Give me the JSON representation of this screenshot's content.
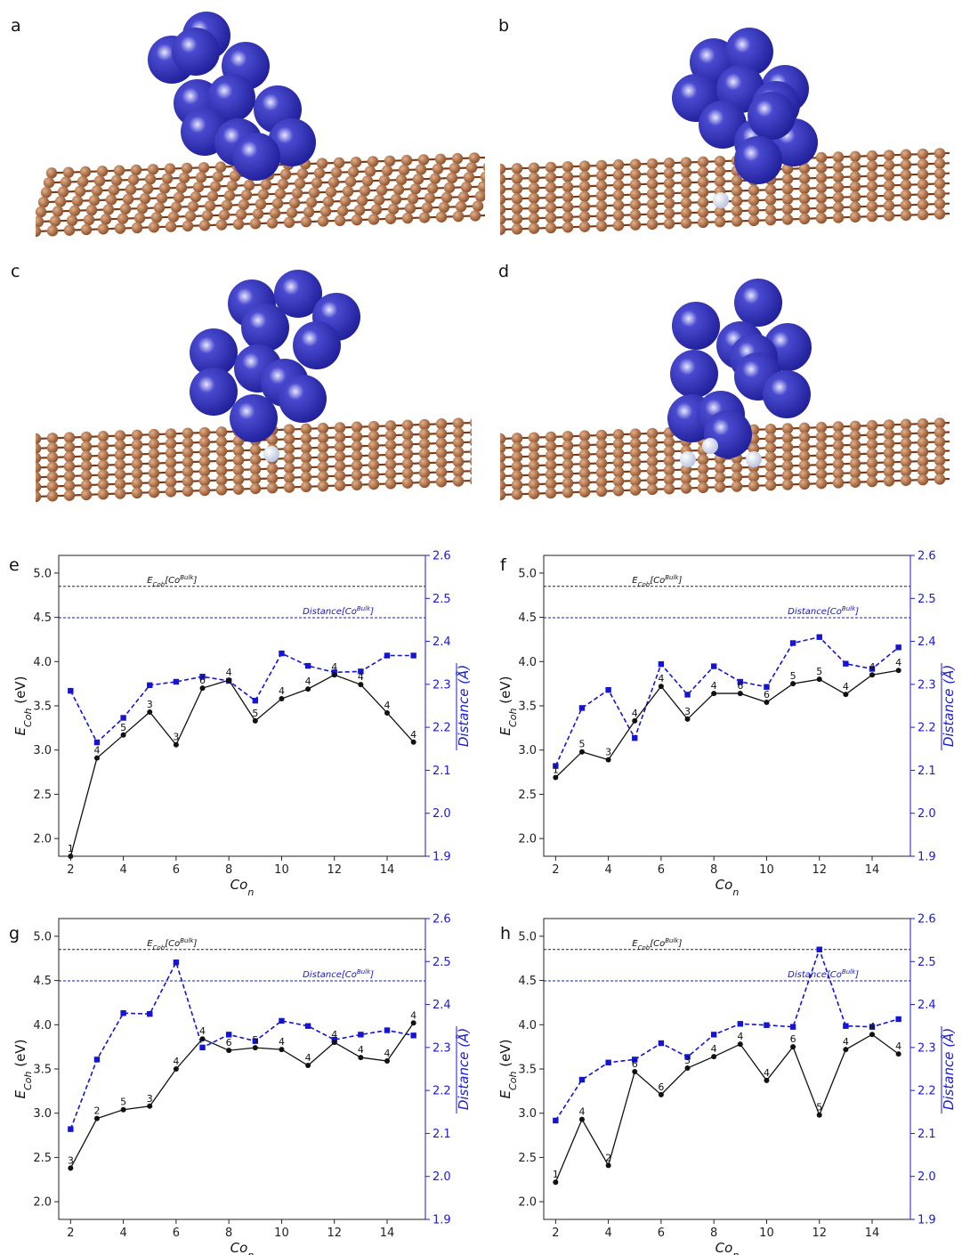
{
  "panels": {
    "a": "a",
    "b": "b",
    "c": "c",
    "d": "d",
    "e": "e",
    "f": "f",
    "g": "g",
    "h": "h"
  },
  "colors": {
    "cobalt": "#1f1f99",
    "carbon": "#8b4a24",
    "nitrogen": "#b7c2df",
    "energy_line": "#111111",
    "distance_line": "#1414d2",
    "axis_blue": "#1a1adb"
  },
  "axes_text": {
    "xlabel_main": "Co",
    "xlabel_sub": "n",
    "ylabel_left_main": "E",
    "ylabel_left_sub": "Coh",
    "ylabel_left_unit": " (eV)",
    "ylabel_right": "Distance (Å)",
    "ref_energy_main": "E",
    "ref_energy_sub": "Coh",
    "ref_energy_bracket_open": "[Co",
    "ref_energy_sup": "Bulk",
    "ref_energy_bracket_close": "]",
    "ref_dist_main": "Distance[Co",
    "ref_dist_sup": "Bulk",
    "ref_dist_close": "]"
  },
  "chart_data": [
    {
      "panel": "e",
      "type": "line",
      "x": [
        2,
        3,
        4,
        5,
        6,
        7,
        8,
        9,
        10,
        11,
        12,
        13,
        14,
        15
      ],
      "xticks": [
        2,
        4,
        6,
        8,
        10,
        12,
        14
      ],
      "xlim": [
        1.55,
        15.45
      ],
      "ylim_left": [
        1.8,
        5.2
      ],
      "yticks_left": [
        2.0,
        2.5,
        3.0,
        3.5,
        4.0,
        4.5,
        5.0
      ],
      "ylim_right": [
        1.9,
        2.6
      ],
      "yticks_right": [
        1.9,
        2.0,
        2.1,
        2.2,
        2.3,
        2.4,
        2.5,
        2.6
      ],
      "energy": [
        1.8,
        2.91,
        3.17,
        3.43,
        3.06,
        3.7,
        3.79,
        3.33,
        3.58,
        3.69,
        3.85,
        3.74,
        3.42,
        3.09
      ],
      "energy_labels": [
        "1",
        "4",
        "5",
        "3",
        "3",
        "6",
        "4",
        "5",
        "4",
        "4",
        "4",
        "4",
        "4",
        "4"
      ],
      "distance": [
        2.285,
        2.165,
        2.222,
        2.298,
        2.306,
        2.318,
        2.308,
        2.262,
        2.372,
        2.343,
        2.328,
        2.33,
        2.367,
        2.367
      ],
      "ref_energy": 4.85,
      "ref_distance": 2.455
    },
    {
      "panel": "f",
      "type": "line",
      "x": [
        2,
        3,
        4,
        5,
        6,
        7,
        8,
        9,
        10,
        11,
        12,
        13,
        14,
        15
      ],
      "xticks": [
        2,
        4,
        6,
        8,
        10,
        12,
        14
      ],
      "xlim": [
        1.55,
        15.45
      ],
      "ylim_left": [
        1.8,
        5.2
      ],
      "yticks_left": [
        2.0,
        2.5,
        3.0,
        3.5,
        4.0,
        4.5,
        5.0
      ],
      "ylim_right": [
        1.9,
        2.6
      ],
      "yticks_right": [
        1.9,
        2.0,
        2.1,
        2.2,
        2.3,
        2.4,
        2.5,
        2.6
      ],
      "energy": [
        2.69,
        2.98,
        2.89,
        3.33,
        3.72,
        3.35,
        3.64,
        3.64,
        3.54,
        3.75,
        3.8,
        3.63,
        3.85,
        3.9
      ],
      "energy_labels": [
        "1",
        "5",
        "3",
        "4",
        "4",
        "3",
        "4",
        "6",
        "6",
        "5",
        "5",
        "4",
        "4",
        "4"
      ],
      "distance": [
        2.11,
        2.245,
        2.287,
        2.175,
        2.347,
        2.276,
        2.342,
        2.306,
        2.294,
        2.396,
        2.41,
        2.348,
        2.336,
        2.386
      ],
      "ref_energy": 4.85,
      "ref_distance": 2.455
    },
    {
      "panel": "g",
      "type": "line",
      "x": [
        2,
        3,
        4,
        5,
        6,
        7,
        8,
        9,
        10,
        11,
        12,
        13,
        14,
        15
      ],
      "xticks": [
        2,
        4,
        6,
        8,
        10,
        12,
        14
      ],
      "xlim": [
        1.55,
        15.45
      ],
      "ylim_left": [
        1.8,
        5.2
      ],
      "yticks_left": [
        2.0,
        2.5,
        3.0,
        3.5,
        4.0,
        4.5,
        5.0
      ],
      "ylim_right": [
        1.9,
        2.6
      ],
      "yticks_right": [
        1.9,
        2.0,
        2.1,
        2.2,
        2.3,
        2.4,
        2.5,
        2.6
      ],
      "energy": [
        2.38,
        2.94,
        3.04,
        3.08,
        3.5,
        3.84,
        3.71,
        3.74,
        3.72,
        3.54,
        3.8,
        3.63,
        3.59,
        4.02
      ],
      "energy_labels": [
        "3",
        "2",
        "5",
        "3",
        "4",
        "4",
        "6",
        "5",
        "4",
        "4",
        "4",
        "4",
        "4",
        "4"
      ],
      "distance": [
        2.11,
        2.272,
        2.38,
        2.378,
        2.498,
        2.3,
        2.33,
        2.315,
        2.362,
        2.35,
        2.318,
        2.33,
        2.34,
        2.328
      ],
      "ref_energy": 4.85,
      "ref_distance": 2.455
    },
    {
      "panel": "h",
      "type": "line",
      "x": [
        2,
        3,
        4,
        5,
        6,
        7,
        8,
        9,
        10,
        11,
        12,
        13,
        14,
        15
      ],
      "xticks": [
        2,
        4,
        6,
        8,
        10,
        12,
        14
      ],
      "xlim": [
        1.55,
        15.45
      ],
      "ylim_left": [
        1.8,
        5.2
      ],
      "yticks_left": [
        2.0,
        2.5,
        3.0,
        3.5,
        4.0,
        4.5,
        5.0
      ],
      "ylim_right": [
        1.9,
        2.6
      ],
      "yticks_right": [
        1.9,
        2.0,
        2.1,
        2.2,
        2.3,
        2.4,
        2.5,
        2.6
      ],
      "energy": [
        2.22,
        2.93,
        2.41,
        3.47,
        3.21,
        3.51,
        3.64,
        3.78,
        3.37,
        3.75,
        2.98,
        3.72,
        3.89,
        3.67
      ],
      "energy_labels": [
        "1",
        "4",
        "2",
        "6",
        "6",
        "3",
        "4",
        "4",
        "4",
        "6",
        "5",
        "4",
        "4",
        "4"
      ],
      "distance": [
        2.13,
        2.225,
        2.265,
        2.272,
        2.31,
        2.278,
        2.33,
        2.355,
        2.352,
        2.348,
        2.528,
        2.35,
        2.348,
        2.366
      ],
      "ref_energy": 4.85,
      "ref_distance": 2.455
    }
  ]
}
